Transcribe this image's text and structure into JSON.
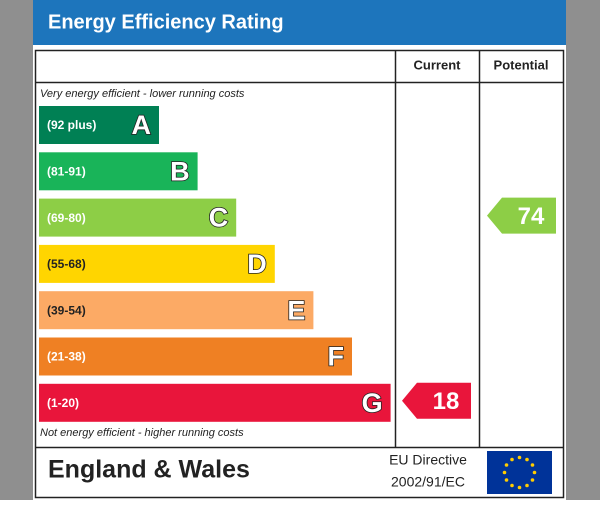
{
  "header": {
    "title": "Energy Efficiency Rating"
  },
  "columns": [
    "Current",
    "Potential"
  ],
  "top_note": "Very energy efficient - lower running costs",
  "bottom_note": "Not energy efficient - higher running costs",
  "bands": [
    {
      "range": "(92 plus)",
      "letter": "A",
      "color": "#008054"
    },
    {
      "range": "(81-91)",
      "letter": "B",
      "color": "#19b459"
    },
    {
      "range": "(69-80)",
      "letter": "C",
      "color": "#8dce46"
    },
    {
      "range": "(55-68)",
      "letter": "D",
      "color": "#ffd500"
    },
    {
      "range": "(39-54)",
      "letter": "E",
      "color": "#fcaa65"
    },
    {
      "range": "(21-38)",
      "letter": "F",
      "color": "#ef8023"
    },
    {
      "range": "(1-20)",
      "letter": "G",
      "color": "#e9153b"
    }
  ],
  "current": {
    "value": 18,
    "band": "G"
  },
  "potential": {
    "value": 74,
    "band": "C"
  },
  "footer": {
    "region": "England & Wales",
    "directive": [
      "EU Directive",
      "2002/91/EC"
    ]
  }
}
